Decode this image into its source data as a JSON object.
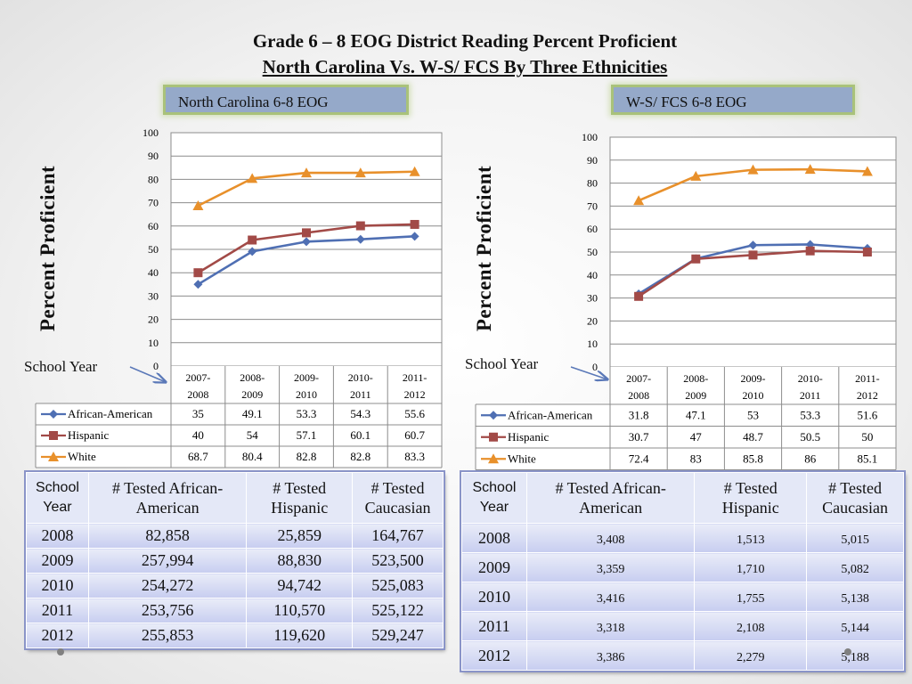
{
  "title_line1": "Grade 6 – 8 EOG District Reading Percent Proficient",
  "title_line2": "North Carolina Vs. W-S/ FCS By Three Ethnicities",
  "colors": {
    "african_american": "#4f6fb3",
    "hispanic": "#a24a47",
    "white": "#e8902b",
    "label_bg": "#95a9c9",
    "label_border": "#a9c27a"
  },
  "chart_data": [
    {
      "type": "line",
      "title": "North Carolina 6-8 EOG",
      "ylabel": "Percent Proficient",
      "xlabel": "School Year",
      "ylim": [
        0,
        100
      ],
      "yticks": [
        "0",
        "10",
        "20",
        "30",
        "40",
        "50",
        "60",
        "70",
        "80",
        "90",
        "100"
      ],
      "grid": true,
      "categories": [
        [
          "2007-",
          "2008"
        ],
        [
          "2008-",
          "2009"
        ],
        [
          "2009-",
          "2010"
        ],
        [
          "2010-",
          "2011"
        ],
        [
          "2011-",
          "2012"
        ]
      ],
      "series": [
        {
          "name": "African-American",
          "values": [
            35,
            49.1,
            53.3,
            54.3,
            55.6
          ],
          "labels": [
            "35",
            "49.1",
            "53.3",
            "54.3",
            "55.6"
          ],
          "marker": "diamond",
          "color": "#4f6fb3"
        },
        {
          "name": "Hispanic",
          "values": [
            40,
            54,
            57.1,
            60.1,
            60.7
          ],
          "labels": [
            "40",
            "54",
            "57.1",
            "60.1",
            "60.7"
          ],
          "marker": "square",
          "color": "#a24a47"
        },
        {
          "name": "White",
          "values": [
            68.7,
            80.4,
            82.8,
            82.8,
            83.3
          ],
          "labels": [
            "68.7",
            "80.4",
            "82.8",
            "82.8",
            "83.3"
          ],
          "marker": "triangle",
          "color": "#e8902b"
        }
      ]
    },
    {
      "type": "line",
      "title": "W-S/ FCS 6-8 EOG",
      "ylabel": "Percent Proficient",
      "xlabel": "School Year",
      "ylim": [
        0,
        100
      ],
      "yticks": [
        "0",
        "10",
        "20",
        "30",
        "40",
        "50",
        "60",
        "70",
        "80",
        "90",
        "100"
      ],
      "grid": true,
      "categories": [
        [
          "2007-",
          "2008"
        ],
        [
          "2008-",
          "2009"
        ],
        [
          "2009-",
          "2010"
        ],
        [
          "2010-",
          "2011"
        ],
        [
          "2011-",
          "2012"
        ]
      ],
      "series": [
        {
          "name": "African-American",
          "values": [
            31.8,
            47.1,
            53,
            53.3,
            51.6
          ],
          "labels": [
            "31.8",
            "47.1",
            "53",
            "53.3",
            "51.6"
          ],
          "marker": "diamond",
          "color": "#4f6fb3"
        },
        {
          "name": "Hispanic",
          "values": [
            30.7,
            47,
            48.7,
            50.5,
            50
          ],
          "labels": [
            "30.7",
            "47",
            "48.7",
            "50.5",
            "50"
          ],
          "marker": "square",
          "color": "#a24a47"
        },
        {
          "name": "White",
          "values": [
            72.4,
            83,
            85.8,
            86,
            85.1
          ],
          "labels": [
            "72.4",
            "83",
            "85.8",
            "86",
            "85.1"
          ],
          "marker": "triangle",
          "color": "#e8902b"
        }
      ]
    }
  ],
  "tables": {
    "nc": {
      "headers": [
        "School Year",
        "# Tested African-American",
        "# Tested Hispanic",
        "# Tested Caucasian"
      ],
      "rows": [
        [
          "2008",
          "82,858",
          "25,859",
          "164,767"
        ],
        [
          "2009",
          "257,994",
          "88,830",
          "523,500"
        ],
        [
          "2010",
          "254,272",
          "94,742",
          "525,083"
        ],
        [
          "2011",
          "253,756",
          "110,570",
          "525,122"
        ],
        [
          "2012",
          "255,853",
          "119,620",
          "529,247"
        ]
      ]
    },
    "ws": {
      "headers": [
        "School Year",
        "# Tested African-American",
        "# Tested Hispanic",
        "# Tested Caucasian"
      ],
      "rows": [
        [
          "2008",
          "3,408",
          "1,513",
          "5,015"
        ],
        [
          "2009",
          "3,359",
          "1,710",
          "5,082"
        ],
        [
          "2010",
          "3,416",
          "1,755",
          "5,138"
        ],
        [
          "2011",
          "3,318",
          "2,108",
          "5,144"
        ],
        [
          "2012",
          "3,386",
          "2,279",
          "5,188"
        ]
      ]
    }
  }
}
